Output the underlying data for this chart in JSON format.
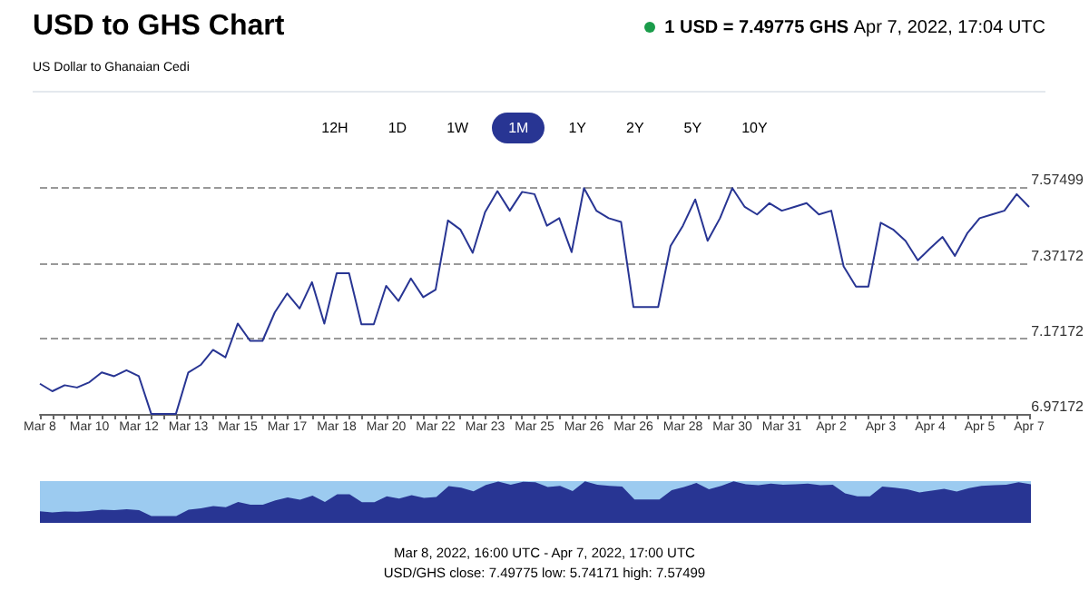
{
  "chart_data": {
    "type": "line",
    "title": "USD to GHS Chart",
    "subtitle": "US Dollar to Ghanaian Cedi",
    "annotations": [
      "1 USD = 7.49775 GHS",
      "Apr 7, 2022, 17:04 UTC",
      "12H",
      "1D",
      "1W",
      "1M",
      "1Y",
      "2Y",
      "5Y",
      "10Y",
      "Mar 8, 2022, 16:00 UTC - Apr 7, 2022, 17:00 UTC",
      "USD/GHS close: 7.49775 low: 5.74171 high: 7.57499"
    ],
    "categories": [
      "Mar 8",
      null,
      null,
      null,
      "Mar 10",
      null,
      null,
      null,
      "Mar 12",
      null,
      null,
      null,
      "Mar 13",
      null,
      null,
      null,
      "Mar 15",
      null,
      null,
      null,
      "Mar 17",
      null,
      null,
      null,
      "Mar 18",
      null,
      null,
      null,
      "Mar 20",
      null,
      null,
      null,
      "Mar 22",
      null,
      null,
      null,
      "Mar 23",
      null,
      null,
      null,
      "Mar 25",
      null,
      null,
      null,
      "Mar 26",
      null,
      null,
      null,
      "Mar 26",
      null,
      null,
      null,
      "Mar 28",
      null,
      null,
      null,
      "Mar 30",
      null,
      null,
      null,
      "Mar 31",
      null,
      null,
      null,
      "Apr 2",
      null,
      null,
      null,
      "Apr 3",
      null,
      null,
      null,
      "Apr 4",
      null,
      null,
      null,
      "Apr 5",
      null,
      null,
      null,
      "Apr 7"
    ],
    "series": [
      {
        "color": "#283593",
        "values": [
          7.052,
          7.032,
          7.048,
          7.042,
          7.056,
          7.082,
          7.072,
          7.088,
          7.072,
          6.972,
          6.972,
          6.972,
          7.082,
          7.102,
          7.142,
          7.122,
          7.212,
          7.166,
          7.166,
          7.242,
          7.292,
          7.252,
          7.322,
          7.212,
          7.346,
          7.346,
          7.21,
          7.21,
          7.312,
          7.272,
          7.332,
          7.282,
          7.302,
          7.486,
          7.462,
          7.4,
          7.508,
          7.564,
          7.512,
          7.562,
          7.556,
          7.472,
          7.492,
          7.402,
          7.572,
          7.512,
          7.492,
          7.482,
          7.256,
          7.256,
          7.256,
          7.418,
          7.472,
          7.542,
          7.432,
          7.492,
          7.572,
          7.522,
          7.502,
          7.532,
          7.512,
          7.522,
          7.532,
          7.502,
          7.512,
          7.364,
          7.31,
          7.31,
          7.48,
          7.462,
          7.432,
          7.38,
          7.412,
          7.442,
          7.392,
          7.452,
          7.492,
          7.502,
          7.512,
          7.556,
          7.522
        ]
      }
    ],
    "ylim": [
      6.97172,
      7.57499
    ],
    "yticks": [
      6.97172,
      7.17172,
      7.37172,
      7.57499
    ],
    "grid": "y",
    "marker": "none",
    "line_style": "solid"
  }
}
